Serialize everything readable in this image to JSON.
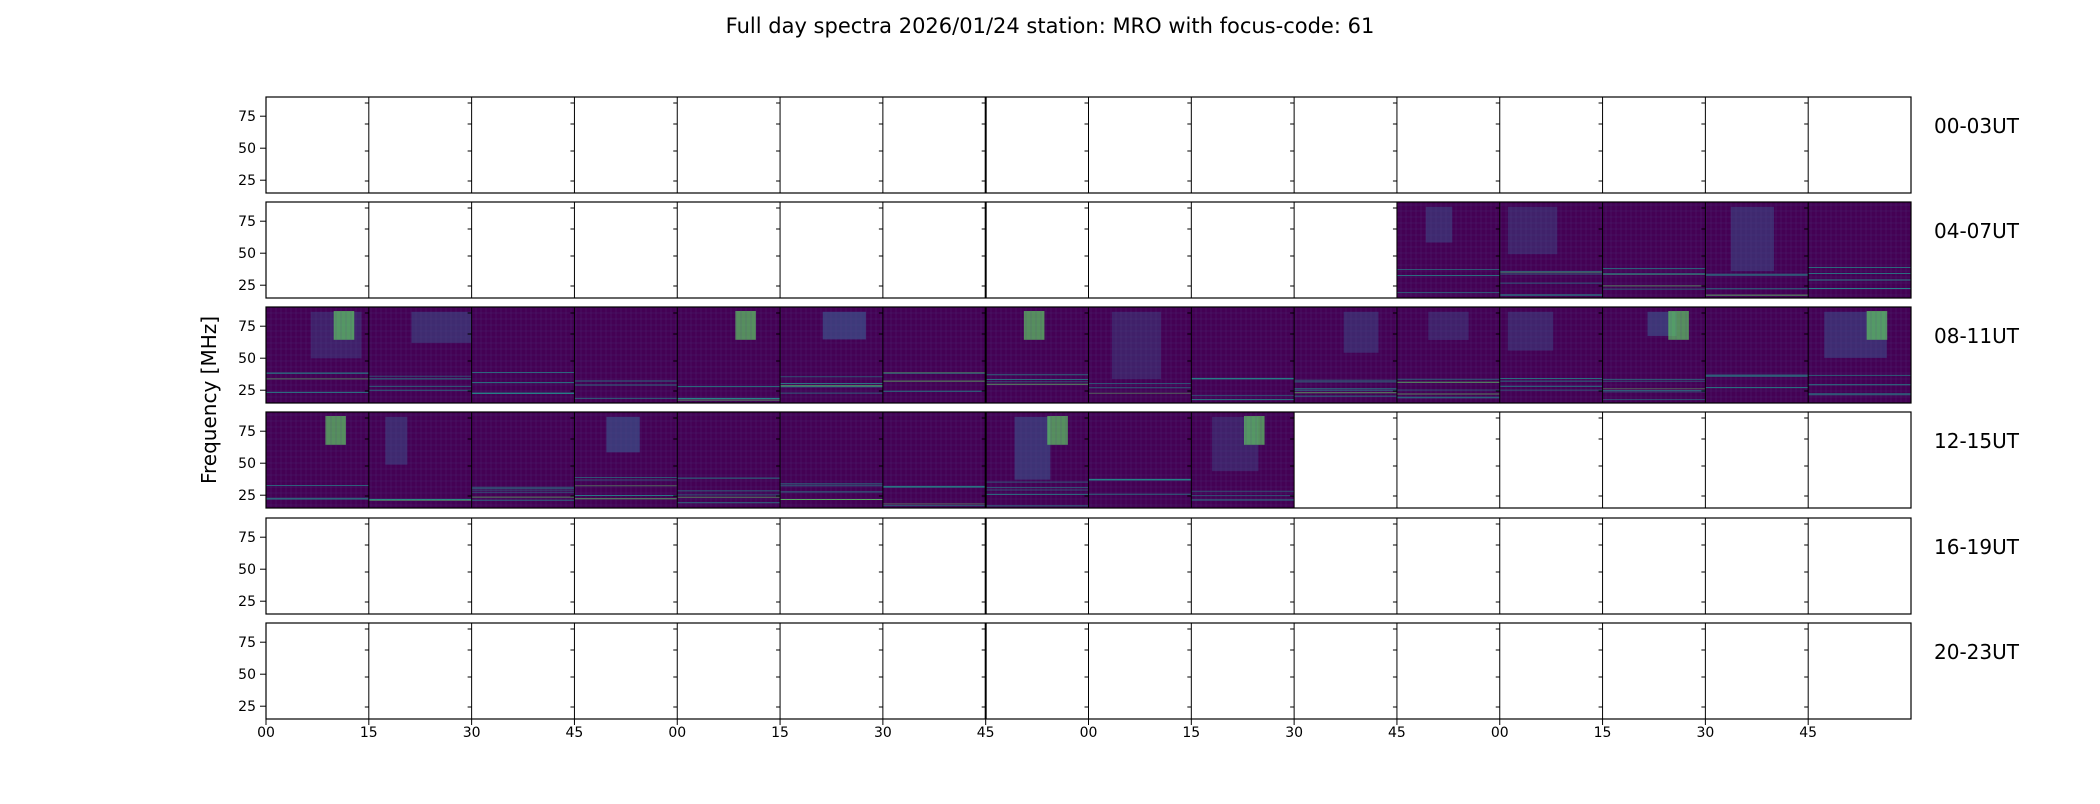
{
  "chart_data": {
    "type": "heatmap",
    "title": "Full day spectra 2026/01/24 station: MRO with focus-code: 61",
    "ylabel": "Frequency [MHz]",
    "xlabel": "",
    "y_ticks": [
      "75",
      "50",
      "25"
    ],
    "y_tick_values": [
      75,
      50,
      25
    ],
    "ylim": [
      15,
      90
    ],
    "x_ticks": [
      "00",
      "15",
      "30",
      "45",
      "00",
      "15",
      "30",
      "45",
      "00",
      "15",
      "30",
      "45",
      "00",
      "15",
      "30",
      "45"
    ],
    "x_tick_minutes": [
      0,
      15,
      30,
      45,
      60,
      75,
      90,
      105,
      120,
      135,
      150,
      165,
      180,
      195,
      210,
      225
    ],
    "window_minutes": 240,
    "segment_minutes": 15,
    "colormap": [
      "#440154",
      "#3b528b",
      "#21918c",
      "#5ec962",
      "#fde725"
    ],
    "rows": [
      {
        "label": "00-03UT",
        "data_segments": []
      },
      {
        "label": "04-07UT",
        "data_segments": [
          11,
          12,
          13,
          14,
          15
        ]
      },
      {
        "label": "08-11UT",
        "data_segments": [
          0,
          1,
          2,
          3,
          4,
          5,
          6,
          7,
          8,
          9,
          10,
          11,
          12,
          13,
          14,
          15
        ]
      },
      {
        "label": "12-15UT",
        "data_segments": [
          0,
          1,
          2,
          3,
          4,
          5,
          6,
          7,
          8,
          9
        ]
      },
      {
        "label": "16-19UT",
        "data_segments": []
      },
      {
        "label": "20-23UT",
        "data_segments": []
      }
    ]
  }
}
